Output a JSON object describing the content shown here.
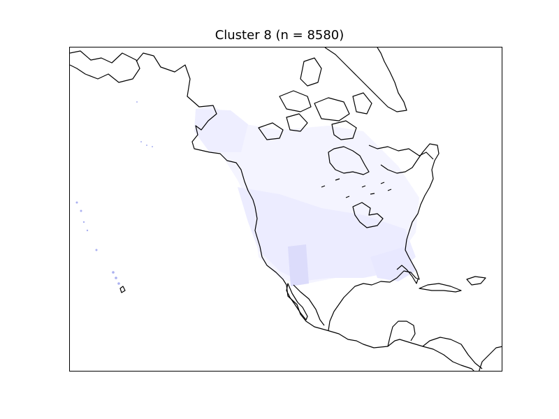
{
  "map": {
    "title": "Cluster 8 (n = 8580)",
    "colors": {
      "coastline": "#000000",
      "density_low": "#f4f4ff",
      "density_mid": "#e8e8ff",
      "density_high": "#dcdcfb",
      "hawaii_points": "#aab0f0"
    }
  }
}
